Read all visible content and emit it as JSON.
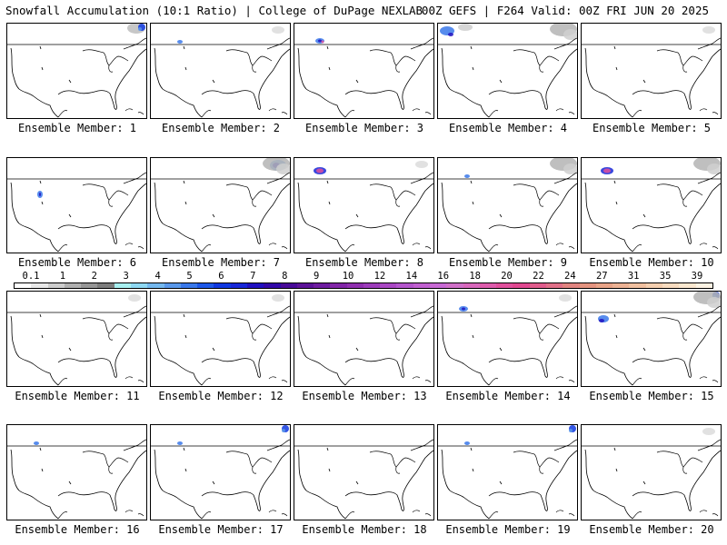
{
  "header": {
    "title_left": "Snowfall Accumulation (10:1 Ratio) | College of DuPage NEXLAB",
    "title_right": "00Z GEFS | F264 Valid: 00Z FRI JUN 20 2025"
  },
  "colorbar": {
    "tick_labels": [
      "0.1",
      "1",
      "2",
      "3",
      "4",
      "5",
      "6",
      "7",
      "8",
      "9",
      "10",
      "12",
      "14",
      "16",
      "18",
      "20",
      "22",
      "24",
      "27",
      "31",
      "35",
      "39"
    ],
    "colors": [
      "#ffffff",
      "#e8e8e8",
      "#cdcdcd",
      "#b0b0b0",
      "#969696",
      "#7d7d7d",
      "#a8f0f0",
      "#8ed8f2",
      "#74b8ee",
      "#5a98ea",
      "#3a78ea",
      "#1e58e8",
      "#1038e0",
      "#1828d8",
      "#2010c0",
      "#3208a8",
      "#480a98",
      "#5c1298",
      "#6e1ca0",
      "#8226a8",
      "#9030b0",
      "#9c3cba",
      "#aa48c4",
      "#b456cc",
      "#c060d0",
      "#c86ad4",
      "#d070c8",
      "#d868bc",
      "#de5cac",
      "#e0509c",
      "#e04890",
      "#e05c8c",
      "#e07088",
      "#e08480",
      "#e49480",
      "#e8a488",
      "#ecb294",
      "#f0c0a0",
      "#f4cfb0",
      "#f8dcc0",
      "#fbe8d0",
      "#fdf3e4"
    ]
  },
  "members": [
    {
      "label": "Ensemble Member: 1",
      "snow": [
        "northeast-gray",
        "northeast-blue"
      ]
    },
    {
      "label": "Ensemble Member: 2",
      "snow": [
        "northwest-blue-small",
        "northeast-gray-light"
      ]
    },
    {
      "label": "Ensemble Member: 3",
      "snow": [
        "northwest-blue",
        "northwest-pink-dot"
      ]
    },
    {
      "label": "Ensemble Member: 4",
      "snow": [
        "northwest-blue-large",
        "northeast-gray-large"
      ]
    },
    {
      "label": "Ensemble Member: 5",
      "snow": [
        "northeast-gray-light"
      ]
    },
    {
      "label": "Ensemble Member: 6",
      "snow": [
        "west-blue-small"
      ]
    },
    {
      "label": "Ensemble Member: 7",
      "snow": [
        "northeast-blue-large",
        "northeast-gray-large"
      ]
    },
    {
      "label": "Ensemble Member: 8",
      "snow": [
        "northwest-pink",
        "northeast-gray-light"
      ]
    },
    {
      "label": "Ensemble Member: 9",
      "snow": [
        "northwest-blue-small",
        "northeast-gray-large"
      ]
    },
    {
      "label": "Ensemble Member: 10",
      "snow": [
        "northwest-pink",
        "northeast-gray-large"
      ]
    },
    {
      "label": "Ensemble Member: 11",
      "snow": [
        "northeast-gray-light"
      ]
    },
    {
      "label": "Ensemble Member: 12",
      "snow": [
        "northeast-gray-light"
      ]
    },
    {
      "label": "Ensemble Member: 13",
      "snow": []
    },
    {
      "label": "Ensemble Member: 14",
      "snow": [
        "northwest-blue",
        "northeast-gray-light"
      ]
    },
    {
      "label": "Ensemble Member: 15",
      "snow": [
        "west-blue",
        "northeast-blue",
        "northeast-gray-large"
      ]
    },
    {
      "label": "Ensemble Member: 16",
      "snow": [
        "northwest-blue-small"
      ]
    },
    {
      "label": "Ensemble Member: 17",
      "snow": [
        "northwest-blue-small",
        "northeast-blue"
      ]
    },
    {
      "label": "Ensemble Member: 18",
      "snow": []
    },
    {
      "label": "Ensemble Member: 19",
      "snow": [
        "northwest-blue-small",
        "northeast-blue"
      ]
    },
    {
      "label": "Ensemble Member: 20",
      "snow": [
        "northeast-gray-light"
      ]
    }
  ]
}
